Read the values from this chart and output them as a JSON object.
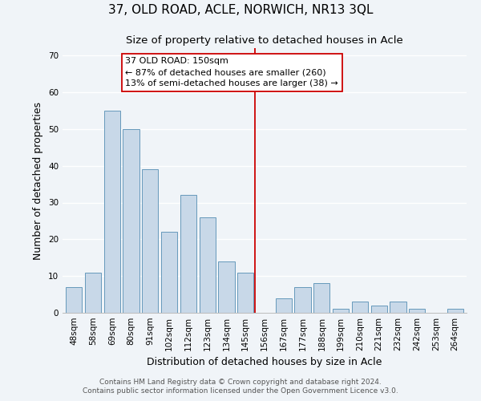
{
  "title": "37, OLD ROAD, ACLE, NORWICH, NR13 3QL",
  "subtitle": "Size of property relative to detached houses in Acle",
  "xlabel": "Distribution of detached houses by size in Acle",
  "ylabel": "Number of detached properties",
  "bar_labels": [
    "48sqm",
    "58sqm",
    "69sqm",
    "80sqm",
    "91sqm",
    "102sqm",
    "112sqm",
    "123sqm",
    "134sqm",
    "145sqm",
    "156sqm",
    "167sqm",
    "177sqm",
    "188sqm",
    "199sqm",
    "210sqm",
    "221sqm",
    "232sqm",
    "242sqm",
    "253sqm",
    "264sqm"
  ],
  "bar_values": [
    7,
    11,
    55,
    50,
    39,
    22,
    32,
    26,
    14,
    11,
    0,
    4,
    7,
    8,
    1,
    3,
    2,
    3,
    1,
    0,
    1
  ],
  "bar_color": "#c8d8e8",
  "bar_edge_color": "#6699bb",
  "ylim": [
    0,
    72
  ],
  "yticks": [
    0,
    10,
    20,
    30,
    40,
    50,
    60,
    70
  ],
  "marker_label": "37 OLD ROAD: 150sqm",
  "annotation_line1": "← 87% of detached houses are smaller (260)",
  "annotation_line2": "13% of semi-detached houses are larger (38) →",
  "marker_line_color": "#cc0000",
  "annotation_box_edge_color": "#cc0000",
  "footer_line1": "Contains HM Land Registry data © Crown copyright and database right 2024.",
  "footer_line2": "Contains public sector information licensed under the Open Government Licence v3.0.",
  "background_color": "#f0f4f8",
  "grid_color": "#ffffff",
  "title_fontsize": 11,
  "subtitle_fontsize": 9.5,
  "axis_label_fontsize": 9,
  "tick_fontsize": 7.5,
  "annotation_fontsize": 8,
  "footer_fontsize": 6.5
}
